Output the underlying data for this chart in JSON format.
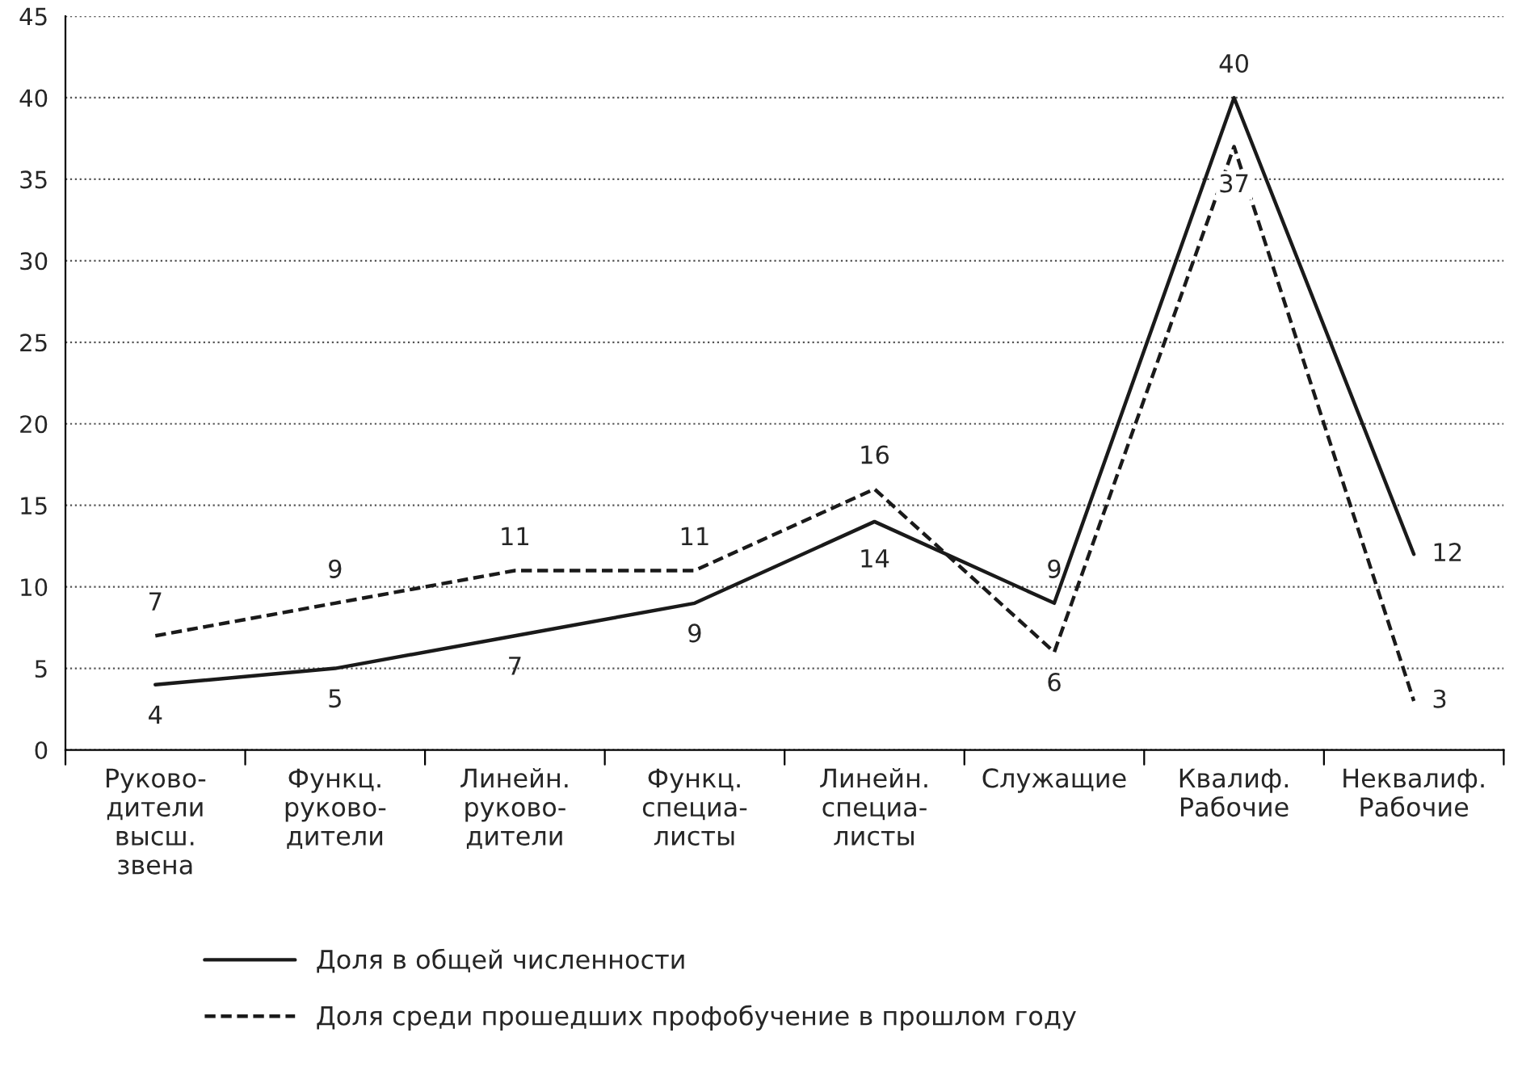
{
  "chart_data": {
    "type": "line",
    "categories": [
      "Руково-\nдители\nвысш.\nзвена",
      "Функц.\nруково-\nдители",
      "Линейн.\nруково-\nдители",
      "Функц.\nспециа-\nлисты",
      "Линейн.\nспециа-\nлисты",
      "Служащие",
      "Квалиф.\nРабочие",
      "Неквалиф.\nРабочие"
    ],
    "series": [
      {
        "name": "Доля в общей численности",
        "color": "#1a1a1a",
        "line_style": "solid",
        "values": [
          4,
          5,
          7,
          9,
          14,
          9,
          40,
          12
        ]
      },
      {
        "name": "Доля среди прошедших профобучение в прошлом году",
        "color": "#1a1a1a",
        "line_style": "dashed",
        "values": [
          7,
          9,
          11,
          11,
          16,
          6,
          37,
          3
        ]
      }
    ],
    "ylim": [
      0,
      45
    ],
    "yticks": [
      0,
      5,
      10,
      15,
      20,
      25,
      30,
      35,
      40,
      45
    ],
    "grid": "y",
    "legend": "bottom",
    "data_labels": true,
    "marker": "none"
  }
}
